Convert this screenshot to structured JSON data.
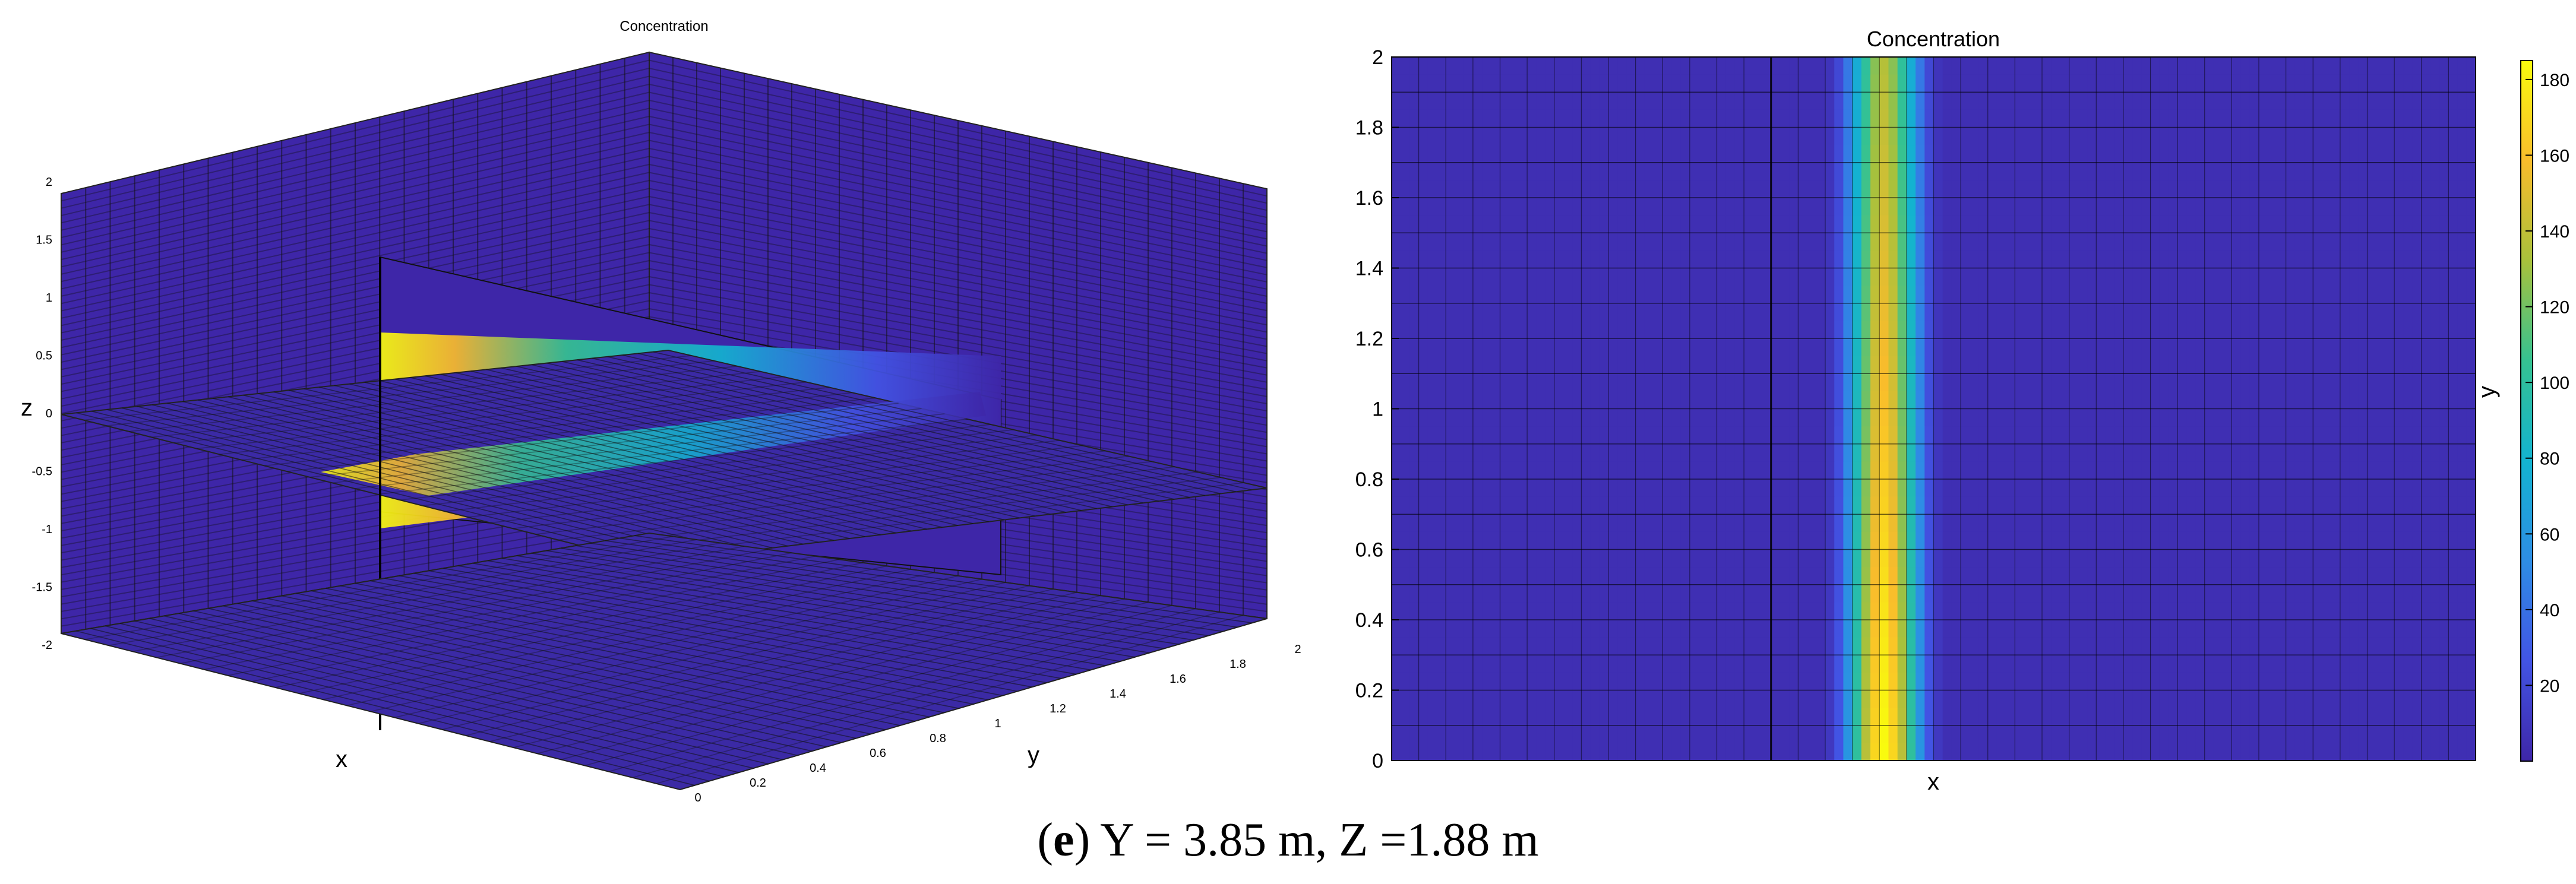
{
  "caption": {
    "open": "(",
    "letter": "e",
    "close": ")",
    "text": " Y = 3.85 m, Z =1.88 m"
  },
  "chart_data": [
    {
      "type": "surface3d",
      "title": "Concentration",
      "xlabel": "x",
      "ylabel": "y",
      "zlabel": "z",
      "y_ticks": [
        "0",
        "0.2",
        "0.4",
        "0.6",
        "0.8",
        "1",
        "1.2",
        "1.4",
        "1.6",
        "1.8",
        "2"
      ],
      "z_ticks": [
        "2",
        "1.5",
        "1",
        "0.5",
        "0",
        "-0.5",
        "-1",
        "-1.5",
        "-2"
      ],
      "ylim": [
        0,
        2
      ],
      "zlim": [
        -2,
        2
      ],
      "slices": [
        "x-slice",
        "y-slice",
        "z-slice"
      ],
      "plume_peak": 185,
      "colormap": [
        "#3e26a8",
        "#4254e4",
        "#2e8de5",
        "#13b3d0",
        "#35c291",
        "#a8c13c",
        "#f9bc2c",
        "#f9fb0e"
      ]
    },
    {
      "type": "heatmap",
      "title": "Concentration",
      "xlabel": "x",
      "ylabel": "y",
      "ylim": [
        0,
        2
      ],
      "y_ticks": [
        "0",
        "0.2",
        "0.4",
        "0.6",
        "0.8",
        "1",
        "1.2",
        "1.4",
        "1.6",
        "1.8",
        "2"
      ],
      "colorbar": {
        "min": 0,
        "max": 185,
        "ticks": [
          "20",
          "40",
          "60",
          "80",
          "100",
          "120",
          "140",
          "160",
          "180"
        ]
      },
      "column_values": [
        5,
        5,
        5,
        5,
        5,
        5,
        5,
        5,
        5,
        5,
        5,
        5,
        5,
        5,
        5,
        5,
        5,
        5,
        5,
        5,
        5,
        5,
        5,
        5,
        5,
        5,
        5,
        5,
        5,
        5,
        5,
        5,
        5,
        5,
        5,
        5,
        5,
        5,
        5,
        5,
        5,
        5,
        5,
        5,
        5,
        5,
        5,
        5,
        10,
        25,
        55,
        95,
        130,
        160,
        175,
        160,
        130,
        95,
        55,
        25,
        10,
        5,
        5,
        5,
        5,
        5,
        5,
        5,
        5,
        5,
        5,
        5,
        5,
        5,
        5,
        5,
        5,
        5,
        5,
        5,
        5,
        5,
        5,
        5,
        5,
        5,
        5,
        5,
        5,
        5,
        5,
        5,
        5,
        5,
        5,
        5,
        5,
        5,
        5,
        5,
        5,
        5,
        5,
        5,
        5,
        5,
        5,
        5,
        5,
        5,
        5,
        5,
        5,
        5,
        5,
        5,
        5,
        5,
        5,
        5
      ],
      "row_scale_bottom": 1.06,
      "row_scale_top": 0.78
    }
  ]
}
